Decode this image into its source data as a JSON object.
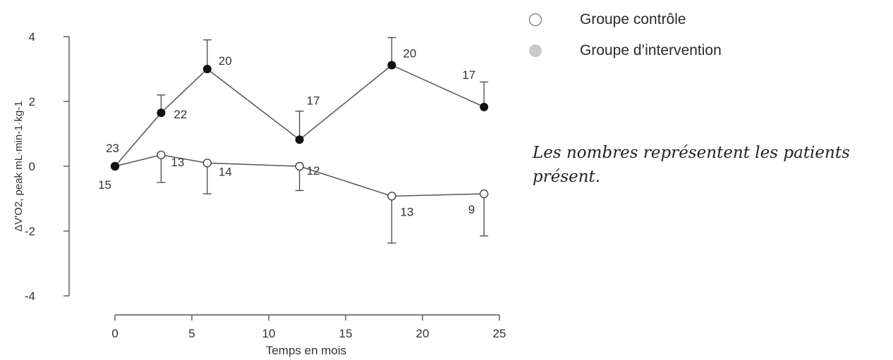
{
  "chart_data": {
    "type": "line",
    "xlabel": "Temps en mois",
    "ylabel": "ΔV'O2, peak mL·min-1·kg-1",
    "xlim": [
      0,
      25
    ],
    "ylim": [
      -4,
      4
    ],
    "xticks": [
      0,
      5,
      10,
      15,
      20,
      25
    ],
    "yticks": [
      -4,
      -2,
      0,
      2,
      4
    ],
    "grid": false,
    "legend_position": "top-right, outside plot",
    "series": [
      {
        "name": "Groupe contrôle",
        "marker": "open-circle",
        "color": "#444444",
        "x": [
          0,
          3,
          6,
          12,
          18,
          24
        ],
        "y": [
          0,
          0.35,
          0.1,
          0.0,
          -0.92,
          -0.85
        ],
        "error_bar_direction": "down",
        "error": [
          0,
          0.85,
          0.95,
          0.75,
          1.45,
          1.3
        ],
        "patients": [
          "15",
          "13",
          "14",
          "12",
          "13",
          "9"
        ]
      },
      {
        "name": "Groupe d’intervention",
        "marker": "filled-circle",
        "color": "#111111",
        "x": [
          0,
          3,
          6,
          12,
          18,
          24
        ],
        "y": [
          0,
          1.65,
          3.0,
          0.82,
          3.12,
          1.83
        ],
        "error_bar_direction": "up",
        "error": [
          0,
          0.55,
          0.9,
          0.88,
          0.85,
          0.77
        ],
        "patients": [
          "23",
          "22",
          "20",
          "17",
          "20",
          "17"
        ]
      }
    ]
  },
  "legend": {
    "control_label": "Groupe contrôle",
    "intervention_label": "Groupe d’intervention",
    "control_marker_border": "#555555",
    "intervention_marker_color": "#c9c9c9"
  },
  "note": "Les nombres représentent les patients présent."
}
